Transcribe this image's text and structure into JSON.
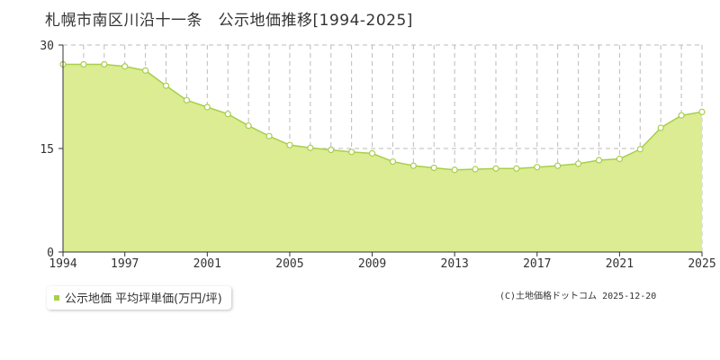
{
  "header": {
    "title": "札幌市南区川沿十一条　公示地価推移[1994-2025]"
  },
  "legend": {
    "label": "公示地価 平均坪単価(万円/坪)"
  },
  "footer": {
    "copyright": "(C)土地価格ドットコム 2025-12-20"
  },
  "colors": {
    "fill": "#dbec93",
    "line": "#a8cf4a",
    "marker_fill": "#ffffff",
    "grid": "#bbbbbb",
    "axis": "#333333",
    "legend_swatch": "#a8cf4a"
  },
  "chart_data": {
    "type": "area",
    "x": [
      1994,
      1995,
      1996,
      1997,
      1998,
      1999,
      2000,
      2001,
      2002,
      2003,
      2004,
      2005,
      2006,
      2007,
      2008,
      2009,
      2010,
      2011,
      2012,
      2013,
      2014,
      2015,
      2016,
      2017,
      2018,
      2019,
      2020,
      2021,
      2022,
      2023,
      2024,
      2025
    ],
    "series": [
      {
        "name": "公示地価 平均坪単価(万円/坪)",
        "values": [
          27.2,
          27.2,
          27.2,
          26.9,
          26.3,
          24.1,
          22.0,
          21.0,
          20.0,
          18.3,
          16.8,
          15.5,
          15.1,
          14.8,
          14.5,
          14.3,
          13.1,
          12.5,
          12.2,
          11.9,
          12.0,
          12.1,
          12.1,
          12.3,
          12.5,
          12.8,
          13.3,
          13.5,
          14.9,
          18.0,
          19.8,
          20.3
        ]
      }
    ],
    "xticks": [
      "1994",
      "1997",
      "2001",
      "2005",
      "2009",
      "2013",
      "2017",
      "2021",
      "2025"
    ],
    "yticks": [
      "0",
      "15",
      "30"
    ],
    "ylim": [
      0,
      30
    ],
    "xlim": [
      1994,
      2025
    ],
    "grid": true
  }
}
